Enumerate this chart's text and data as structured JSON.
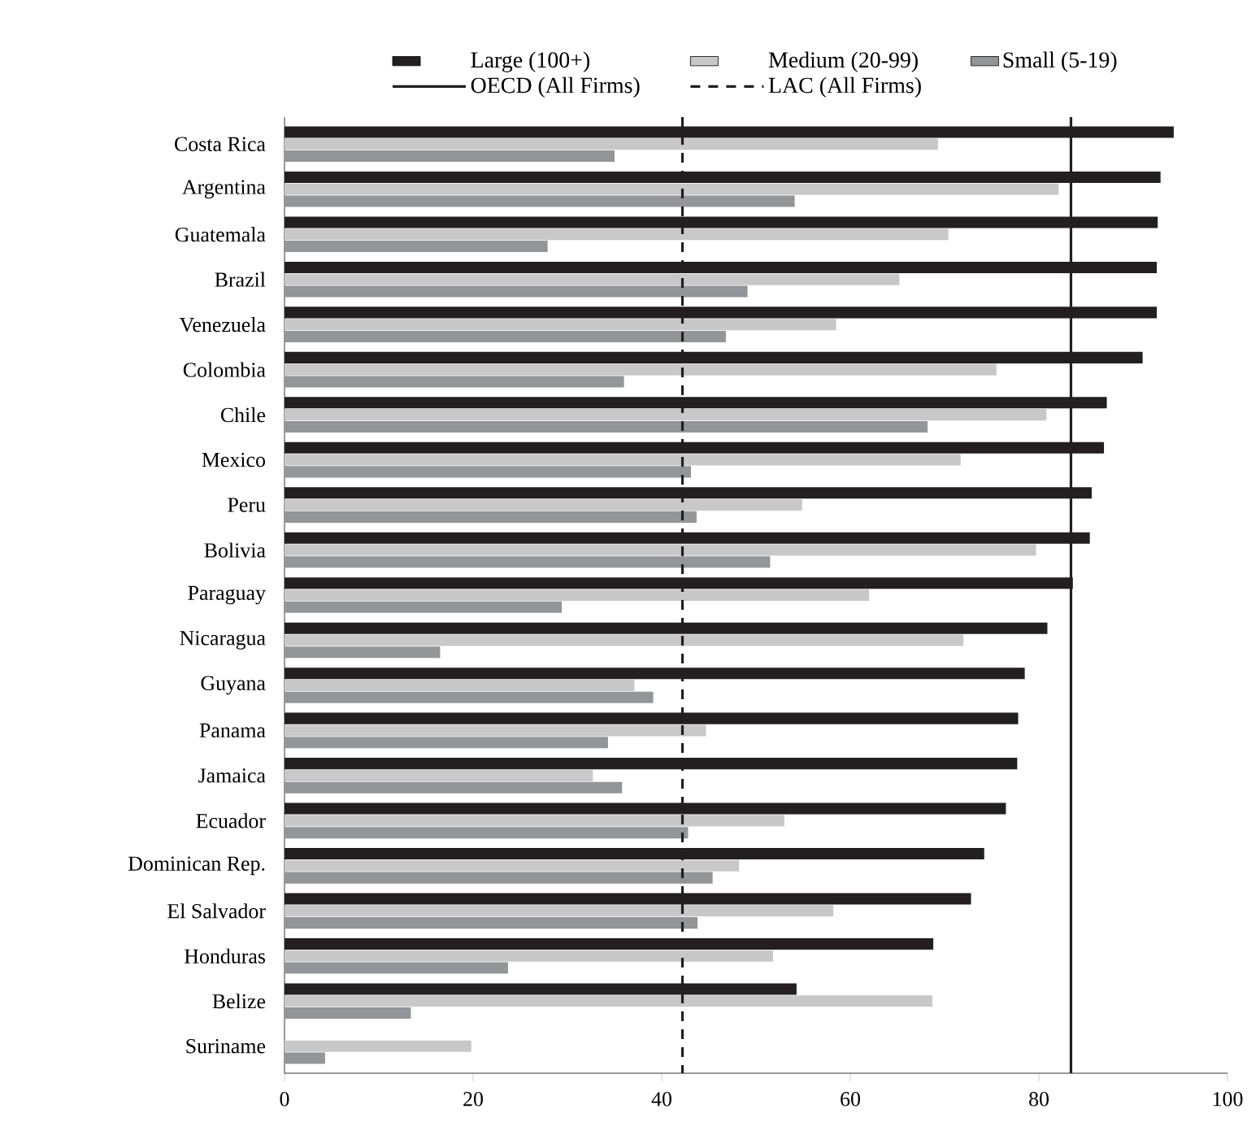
{
  "chart_data": {
    "type": "bar",
    "orientation": "horizontal",
    "categories": [
      "Costa Rica",
      "Argentina",
      "Guatemala",
      "Brazil",
      "Venezuela",
      "Colombia",
      "Chile",
      "Mexico",
      "Peru",
      "Bolivia",
      "Paraguay",
      "Nicaragua",
      "Guyana",
      "Panama",
      "Jamaica",
      "Ecuador",
      "Dominican Rep.",
      "El Salvador",
      "Honduras",
      "Belize",
      "Suriname"
    ],
    "series": [
      {
        "name": "Large (100+)",
        "color": "#231f20",
        "values": [
          94.3,
          92.9,
          92.6,
          92.5,
          92.5,
          91.0,
          87.2,
          86.9,
          85.6,
          85.4,
          83.6,
          80.9,
          78.5,
          77.8,
          77.7,
          76.5,
          74.2,
          72.8,
          68.8,
          54.3,
          null
        ]
      },
      {
        "name": "Medium (20-99)",
        "color": "#c8c8c8",
        "values": [
          69.3,
          82.1,
          70.4,
          65.2,
          58.5,
          75.5,
          80.8,
          71.7,
          54.9,
          79.7,
          62.0,
          72.0,
          37.1,
          44.7,
          32.7,
          53.0,
          48.2,
          58.2,
          51.8,
          68.7,
          19.8
        ]
      },
      {
        "name": "Small (5-19)",
        "color": "#939598",
        "values": [
          35.0,
          54.1,
          27.9,
          49.1,
          46.8,
          36.0,
          68.2,
          43.1,
          43.7,
          51.5,
          29.4,
          16.5,
          39.1,
          34.3,
          35.8,
          42.8,
          45.4,
          43.8,
          23.7,
          13.4,
          4.3
        ]
      }
    ],
    "xlim": [
      0,
      100
    ],
    "xticks": [
      0,
      20,
      40,
      60,
      80,
      100
    ],
    "ref_lines": [
      {
        "axis": "x",
        "value": 83.4,
        "label": "OECD (All Firms)",
        "line_style": "solid",
        "color": "#231f20"
      },
      {
        "axis": "x",
        "value": 42.2,
        "label": "LAC (All Firms)",
        "line_style": "dashed",
        "color": "#231f20"
      }
    ],
    "legend": "top"
  }
}
